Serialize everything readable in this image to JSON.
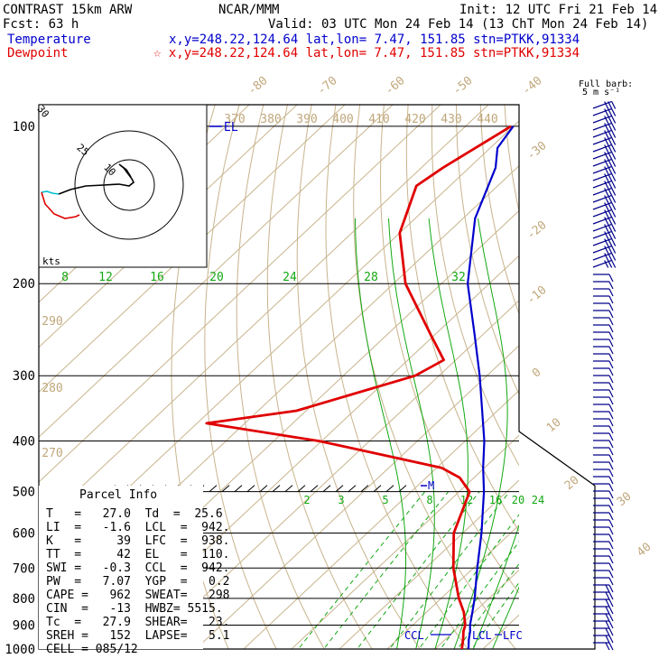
{
  "header": {
    "line1_left": "CONTRAST 15km ARW",
    "line1_center": "NCAR/MMM",
    "line1_right": "Init: 12 UTC Fri 21 Feb 14",
    "line2_left": "Fcst:    63 h",
    "line2_right": "Valid: 03 UTC Mon 24 Feb 14 (13 ChT Mon 24 Feb 14)",
    "temp_label": "Temperature",
    "temp_info": "x,y=248.22,124.64   lat,lon=  7.47, 151.85  stn=PTKK,91334",
    "dew_label": "Dewpoint",
    "dew_info": "☆ x,y=248.22,124.64   lat,lon=  7.47, 151.85  stn=PTKK,91334"
  },
  "barb_legend": {
    "line1": "Full barb:",
    "line2": "5 m s⁻¹"
  },
  "pressure_labels": [
    "100",
    "200",
    "300",
    "400",
    "500",
    "600",
    "700",
    "800",
    "900",
    "1000"
  ],
  "isotherm_labels_top": [
    "-80",
    "-70",
    "-60",
    "-50",
    "-40"
  ],
  "isotherm_labels_right": [
    "-30",
    "-20",
    "-10",
    "0",
    "10",
    "20",
    "30",
    "40"
  ],
  "theta_labels_top": [
    "370",
    "380",
    "390",
    "400",
    "410",
    "420",
    "430",
    "440"
  ],
  "theta_labels_left": [
    "290",
    "280",
    "270"
  ],
  "mixing_upper": [
    "8",
    "12",
    "16",
    "20",
    "24",
    "28",
    "32"
  ],
  "mixing_lower": [
    "2",
    "3",
    "5",
    "8",
    "12",
    "16",
    "20",
    "24"
  ],
  "hodograph": {
    "ring_labels": [
      "30",
      "25",
      "10"
    ],
    "unit": "kts"
  },
  "markers": {
    "el": "EL",
    "m": "M",
    "ccl": "CCL",
    "lcl": "LCL",
    "lfc": "LFC"
  },
  "parcel_info": {
    "title": "Parcel Info",
    "rows": [
      "T   =   27.0  Td  =  25.6",
      "LI  =   -1.6  LCL  =  942.",
      "K   =     39  LFC  =  938.",
      "TT  =     42  EL   =  110.",
      "SWI =   -0.3  CCL  =  942.",
      "PW  =   7.07  YGP  =   0.2",
      "CAPE =   962  SWEAT=   298",
      "CIN  =   -13  HWBZ= 5515.",
      "Tc  =   27.9  SHEAR=   23.",
      "SREH =   152  LAPSE=   5.1",
      "CELL = 085/12"
    ]
  },
  "colors": {
    "temperature": "#0000cc",
    "dewpoint": "#e00000",
    "isotherm": "#c0a77a",
    "mixing_ratio": "#13a813",
    "barbs": "#00008b",
    "hodo_cyan": "#00c0d0"
  },
  "chart_data": {
    "type": "line",
    "title": "",
    "ylabel": "",
    "xlabel": "",
    "y_scale": "log-pressure",
    "ylim": [
      1000,
      100
    ],
    "series": [
      {
        "name": "Temperature",
        "points": [
          [
            1000,
            27.0
          ],
          [
            960,
            25.0
          ],
          [
            925,
            23.4
          ],
          [
            900,
            22.0
          ],
          [
            850,
            19.6
          ],
          [
            800,
            17.0
          ],
          [
            700,
            10.8
          ],
          [
            600,
            3.9
          ],
          [
            500,
            -4.8
          ],
          [
            450,
            -10.3
          ],
          [
            400,
            -16.0
          ],
          [
            300,
            -31.5
          ],
          [
            250,
            -41.8
          ],
          [
            200,
            -54.5
          ],
          [
            150,
            -67.5
          ],
          [
            120,
            -74.5
          ],
          [
            110,
            -78.5
          ],
          [
            100,
            -80.0
          ]
        ]
      },
      {
        "name": "Dewpoint",
        "points": [
          [
            1000,
            25.6
          ],
          [
            960,
            23.8
          ],
          [
            925,
            22.0
          ],
          [
            900,
            21.0
          ],
          [
            850,
            17.8
          ],
          [
            800,
            13.7
          ],
          [
            700,
            5.8
          ],
          [
            600,
            -1.9
          ],
          [
            500,
            -7.8
          ],
          [
            470,
            -13.0
          ],
          [
            450,
            -19.0
          ],
          [
            400,
            -50.5
          ],
          [
            370,
            -78.0
          ],
          [
            350,
            -62.0
          ],
          [
            300,
            -45.0
          ],
          [
            280,
            -42.5
          ],
          [
            250,
            -51.0
          ],
          [
            200,
            -67.5
          ],
          [
            160,
            -80.0
          ],
          [
            130,
            -87.0
          ],
          [
            120,
            -85.5
          ],
          [
            100,
            -80.5
          ]
        ]
      }
    ]
  }
}
